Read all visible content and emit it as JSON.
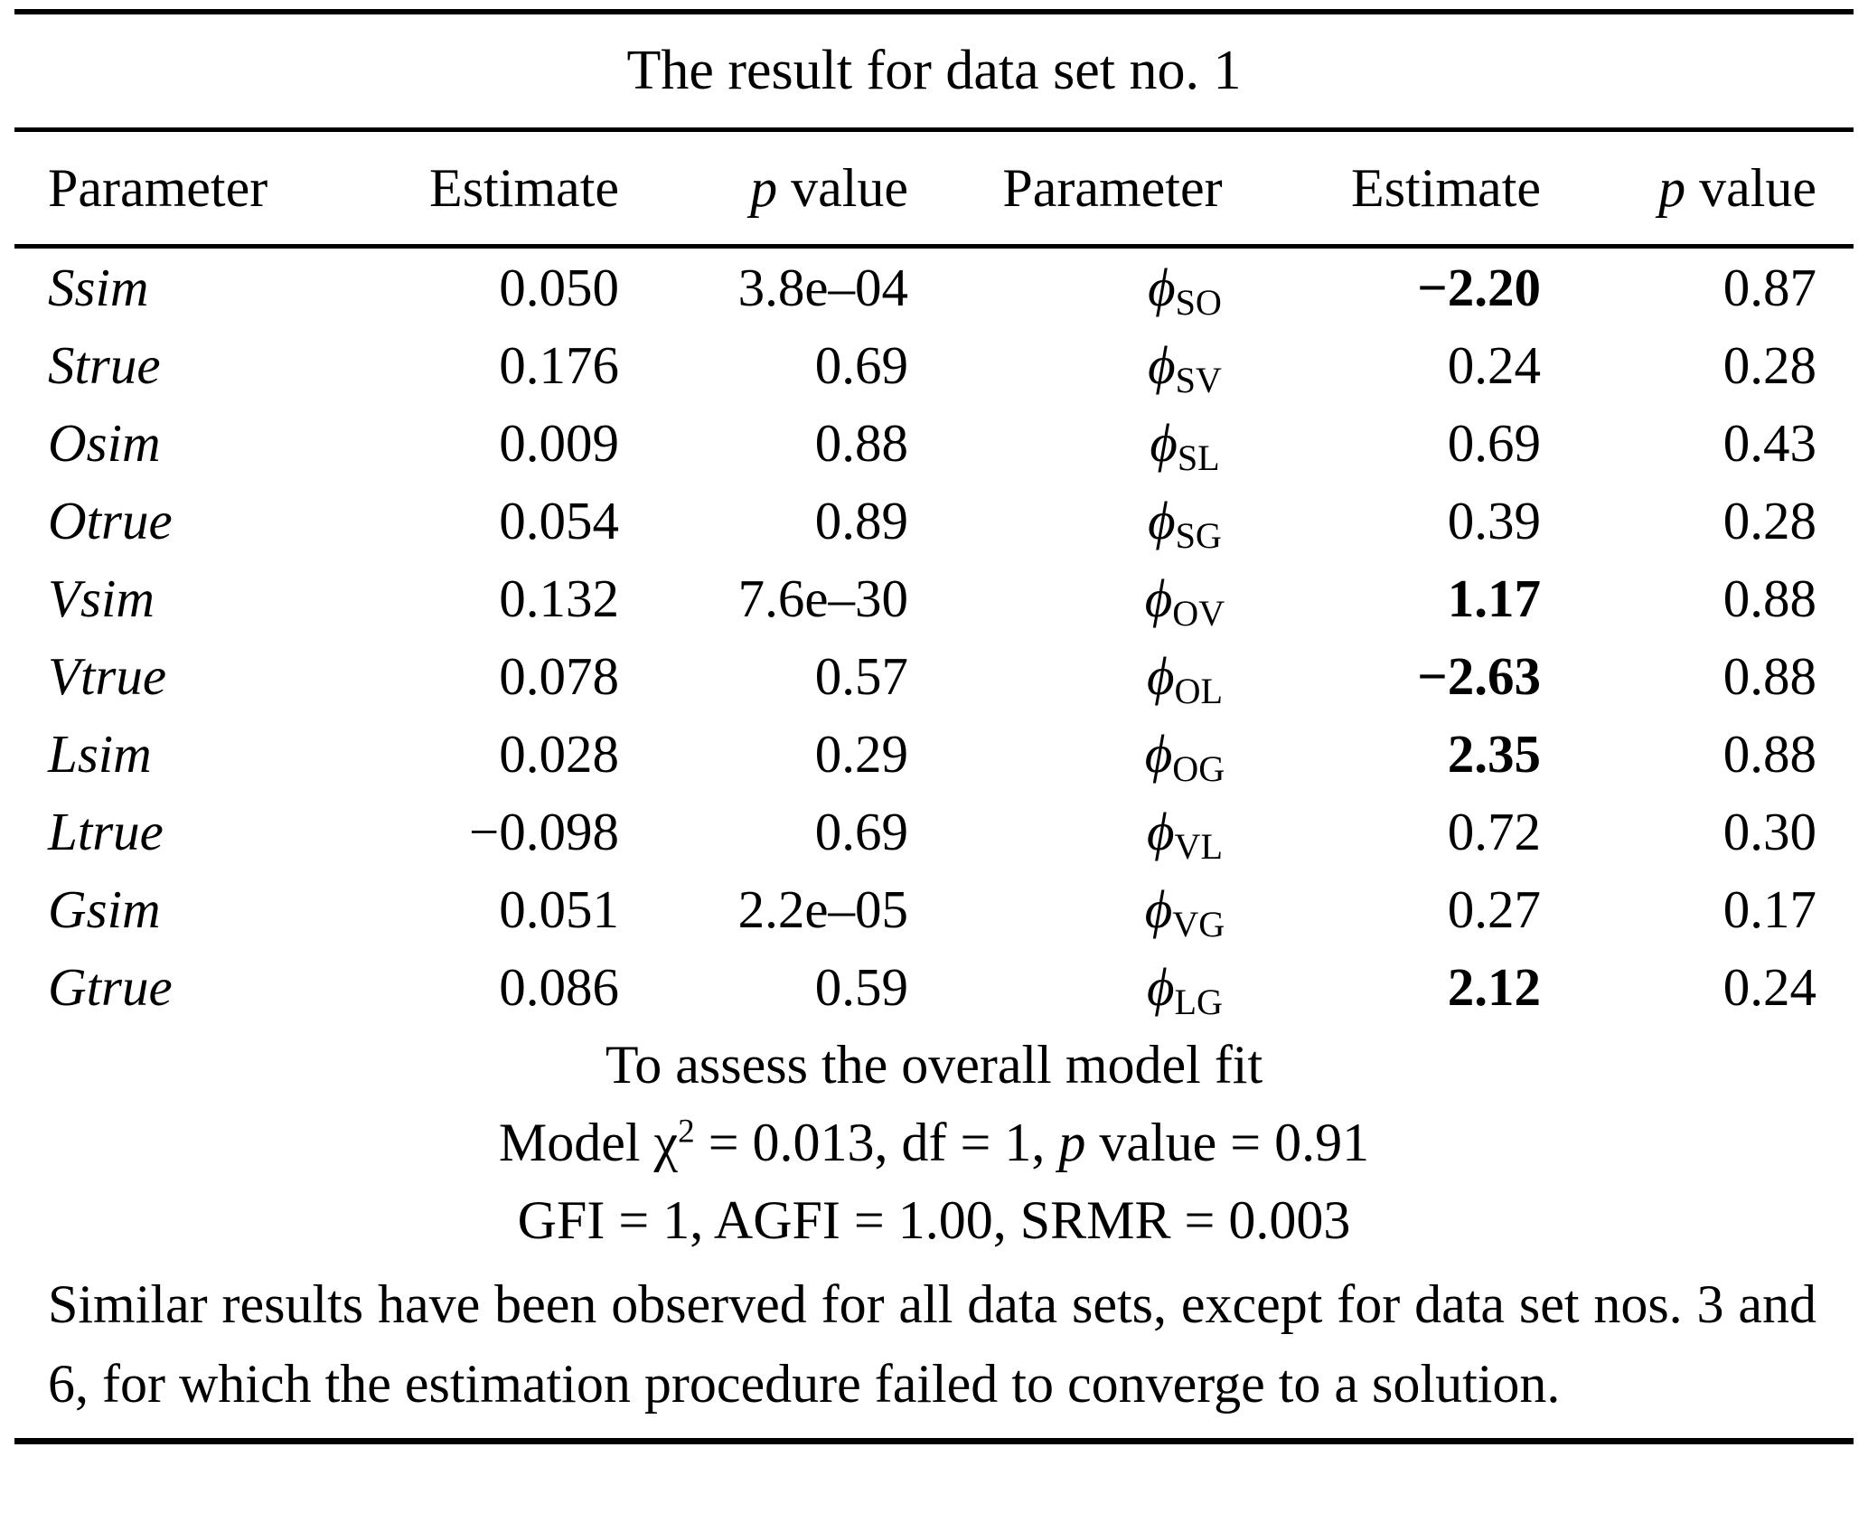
{
  "title": "The result for data set no. 1",
  "symbols": {
    "phi": "ϕ"
  },
  "columns": {
    "parameter": "Parameter",
    "estimate": "Estimate",
    "p_italic": "p",
    "p_rest": " value"
  },
  "rows": [
    {
      "param": "Ssim",
      "est": "0.050",
      "p": "3.8e–04",
      "phi_sub": "SO",
      "phi_est": "−2.20",
      "phi_est_bold": true,
      "phi_p": "0.87"
    },
    {
      "param": "Strue",
      "est": "0.176",
      "p": "0.69",
      "phi_sub": "SV",
      "phi_est": "0.24",
      "phi_est_bold": false,
      "phi_p": "0.28"
    },
    {
      "param": "Osim",
      "est": "0.009",
      "p": "0.88",
      "phi_sub": "SL",
      "phi_est": "0.69",
      "phi_est_bold": false,
      "phi_p": "0.43"
    },
    {
      "param": "Otrue",
      "est": "0.054",
      "p": "0.89",
      "phi_sub": "SG",
      "phi_est": "0.39",
      "phi_est_bold": false,
      "phi_p": "0.28"
    },
    {
      "param": "Vsim",
      "est": "0.132",
      "p": "7.6e–30",
      "phi_sub": "OV",
      "phi_est": "1.17",
      "phi_est_bold": true,
      "phi_p": "0.88"
    },
    {
      "param": "Vtrue",
      "est": "0.078",
      "p": "0.57",
      "phi_sub": "OL",
      "phi_est": "−2.63",
      "phi_est_bold": true,
      "phi_p": "0.88"
    },
    {
      "param": "Lsim",
      "est": "0.028",
      "p": "0.29",
      "phi_sub": "OG",
      "phi_est": "2.35",
      "phi_est_bold": true,
      "phi_p": "0.88"
    },
    {
      "param": "Ltrue",
      "est": "−0.098",
      "p": "0.69",
      "phi_sub": "VL",
      "phi_est": "0.72",
      "phi_est_bold": false,
      "phi_p": "0.30"
    },
    {
      "param": "Gsim",
      "est": "0.051",
      "p": "2.2e–05",
      "phi_sub": "VG",
      "phi_est": "0.27",
      "phi_est_bold": false,
      "phi_p": "0.17"
    },
    {
      "param": "Gtrue",
      "est": "0.086",
      "p": "0.59",
      "phi_sub": "LG",
      "phi_est": "2.12",
      "phi_est_bold": true,
      "phi_p": "0.24"
    }
  ],
  "footer": {
    "fit_heading": "To assess the overall model fit",
    "model_line": {
      "part1": "Model χ",
      "sup": "2",
      "part2": " = 0.013, df = 1, ",
      "p_italic": "p",
      "part3": " value = 0.91"
    },
    "gfi_line": "GFI = 1, AGFI = 1.00, SRMR = 0.003",
    "note": "Similar results have been observed for all data sets, except for data set nos. 3 and 6, for which the estimation procedure failed to converge to a solution."
  },
  "colors": {
    "text": "#000000",
    "background": "#ffffff",
    "rule": "#000000"
  }
}
